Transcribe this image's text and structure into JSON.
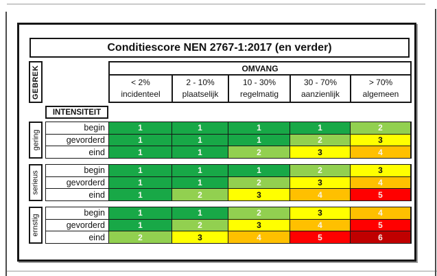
{
  "title": "Conditiescore NEN 2767-1:2017 (en verder)",
  "axes": {
    "gebrek": "GEBREK",
    "omvang": "OMVANG",
    "intensiteit": "INTENSITEIT"
  },
  "columns": [
    {
      "range": "< 2%",
      "label": "incidenteel"
    },
    {
      "range": "2 - 10%",
      "label": "plaatselijk"
    },
    {
      "range": "10 - 30%",
      "label": "regelmatig"
    },
    {
      "range": "30 - 70%",
      "label": "aanzienlijk"
    },
    {
      "range": "> 70%",
      "label": "algemeen"
    }
  ],
  "sections": [
    {
      "label": "gering",
      "rows": [
        {
          "label": "begin",
          "scores": [
            1,
            1,
            1,
            1,
            2
          ]
        },
        {
          "label": "gevorderd",
          "scores": [
            1,
            1,
            1,
            2,
            3
          ]
        },
        {
          "label": "eind",
          "scores": [
            1,
            1,
            2,
            3,
            4
          ]
        }
      ]
    },
    {
      "label": "serieus",
      "rows": [
        {
          "label": "begin",
          "scores": [
            1,
            1,
            1,
            2,
            3
          ]
        },
        {
          "label": "gevorderd",
          "scores": [
            1,
            1,
            2,
            3,
            4
          ]
        },
        {
          "label": "eind",
          "scores": [
            1,
            2,
            3,
            4,
            5
          ]
        }
      ]
    },
    {
      "label": "ernstig",
      "rows": [
        {
          "label": "begin",
          "scores": [
            1,
            1,
            2,
            3,
            4
          ]
        },
        {
          "label": "gevorderd",
          "scores": [
            1,
            2,
            3,
            4,
            5
          ]
        },
        {
          "label": "eind",
          "scores": [
            2,
            3,
            4,
            5,
            6
          ]
        }
      ]
    }
  ],
  "score_colors": {
    "1": {
      "bg": "#18a847",
      "text": "#f2f7ee"
    },
    "2": {
      "bg": "#92d050",
      "text": "#f7f9f0"
    },
    "3": {
      "bg": "#ffff00",
      "text": "#111111"
    },
    "4": {
      "bg": "#ffc000",
      "text": "#f7f2e4"
    },
    "5": {
      "bg": "#ff0000",
      "text": "#f7e9e4"
    },
    "6": {
      "bg": "#c00000",
      "text": "#f5e7e2"
    }
  },
  "chart_data": {
    "type": "heatmap",
    "title": "Conditiescore NEN 2767-1:2017 (en verder)",
    "x_axis_label": "OMVANG",
    "y_axis_label": "GEBREK",
    "intensity_label": "INTENSITEIT",
    "columns": [
      "< 2% incidenteel",
      "2 - 10% plaatselijk",
      "10 - 30% regelmatig",
      "30 - 70% aanzienlijk",
      "> 70% algemeen"
    ],
    "rows": [
      "gering begin",
      "gering gevorderd",
      "gering eind",
      "serieus begin",
      "serieus gevorderd",
      "serieus eind",
      "ernstig begin",
      "ernstig gevorderd",
      "ernstig eind"
    ],
    "values": [
      [
        1,
        1,
        1,
        1,
        2
      ],
      [
        1,
        1,
        1,
        2,
        3
      ],
      [
        1,
        1,
        2,
        3,
        4
      ],
      [
        1,
        1,
        1,
        2,
        3
      ],
      [
        1,
        1,
        2,
        3,
        4
      ],
      [
        1,
        2,
        3,
        4,
        5
      ],
      [
        1,
        1,
        2,
        3,
        4
      ],
      [
        1,
        2,
        3,
        4,
        5
      ],
      [
        2,
        3,
        4,
        5,
        6
      ]
    ],
    "value_range": [
      1,
      6
    ],
    "color_scale": [
      "#18a847",
      "#92d050",
      "#ffff00",
      "#ffc000",
      "#ff0000",
      "#c00000"
    ],
    "legend_position": "none",
    "grid": true
  }
}
